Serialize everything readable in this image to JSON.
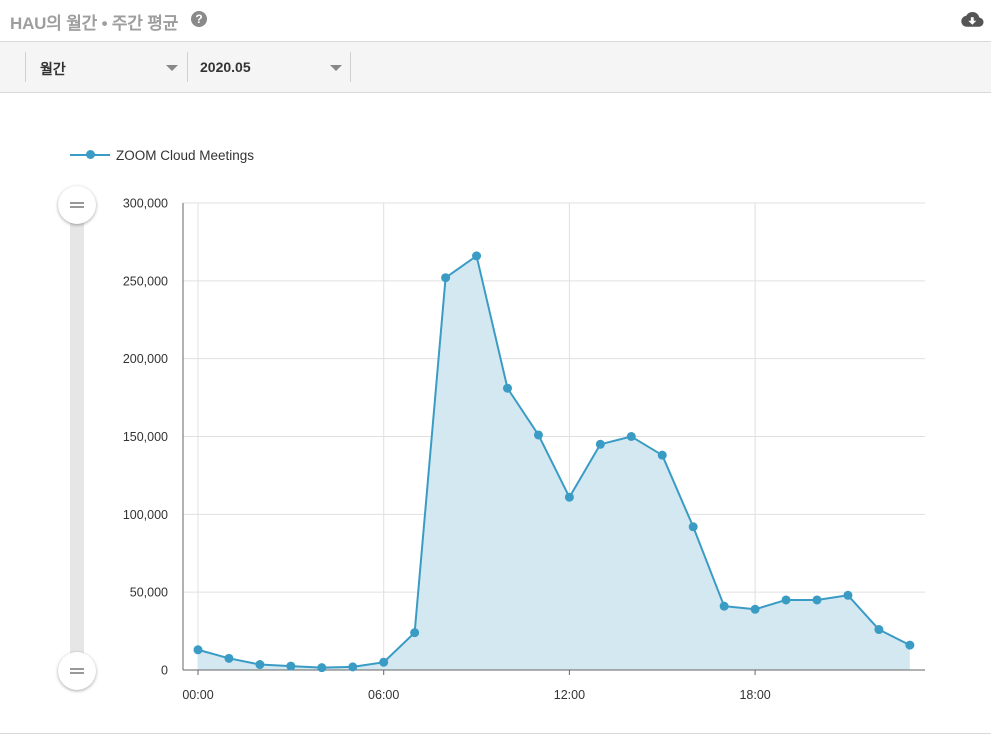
{
  "header": {
    "title": "HAU의 월간 • 주간 평균",
    "help_glyph": "?",
    "download_icon": "cloud-download-icon"
  },
  "toolbar": {
    "period_label": "월간",
    "month_label": "2020.05"
  },
  "colors": {
    "series": "#3a9cc4",
    "area": "#d4e8f2",
    "grid": "#e0e0e0",
    "axis": "#666666"
  },
  "chart_data": {
    "type": "area",
    "x": [
      "00:00",
      "01:00",
      "02:00",
      "03:00",
      "04:00",
      "05:00",
      "06:00",
      "07:00",
      "08:00",
      "09:00",
      "10:00",
      "11:00",
      "12:00",
      "13:00",
      "14:00",
      "15:00",
      "16:00",
      "17:00",
      "18:00",
      "19:00",
      "20:00",
      "21:00",
      "22:00",
      "23:00"
    ],
    "x_tick_labels": [
      "00:00",
      "06:00",
      "12:00",
      "18:00"
    ],
    "series": [
      {
        "name": "ZOOM Cloud Meetings",
        "values": [
          13000,
          7500,
          3500,
          2500,
          1500,
          2000,
          5000,
          24000,
          252000,
          266000,
          181000,
          151000,
          111000,
          145000,
          150000,
          138000,
          92000,
          41000,
          39000,
          45000,
          45000,
          48000,
          26000,
          16000
        ]
      }
    ],
    "y_ticks": [
      "0",
      "50,000",
      "100,000",
      "150,000",
      "200,000",
      "250,000",
      "300,000"
    ],
    "ylim": [
      0,
      300000
    ],
    "grid": true,
    "legend": "top-left",
    "title": "",
    "xlabel": "",
    "ylabel": ""
  }
}
